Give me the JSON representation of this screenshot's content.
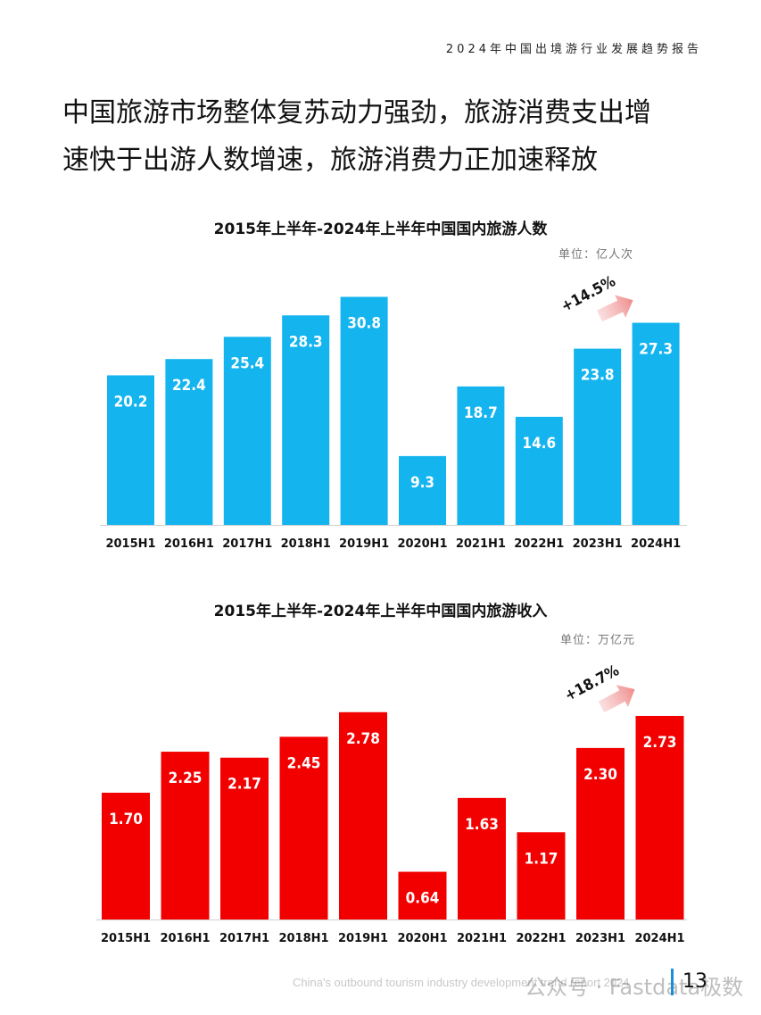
{
  "header": {
    "report_title": "2024年中国出境游行业发展趋势报告"
  },
  "headline": {
    "line1": "中国旅游市场整体复苏动力强劲，旅游消费支出增",
    "line2": "速快于出游人数增速，旅游消费力正加速释放"
  },
  "chart_data": [
    {
      "type": "bar",
      "title": "2015年上半年-2024年上半年中国国内旅游人数",
      "unit_label": "单位：亿人次",
      "categories": [
        "2015H1",
        "2016H1",
        "2017H1",
        "2018H1",
        "2019H1",
        "2020H1",
        "2021H1",
        "2022H1",
        "2023H1",
        "2024H1"
      ],
      "values": [
        20.2,
        22.4,
        25.4,
        28.3,
        30.8,
        9.3,
        18.7,
        14.6,
        23.8,
        27.3
      ],
      "value_labels": [
        "20.2",
        "22.4",
        "25.4",
        "28.3",
        "30.8",
        "9.3",
        "18.7",
        "14.6",
        "23.8",
        "27.3"
      ],
      "annotation": "+14.5%",
      "color": "#14b4ef",
      "ylim": [
        0,
        34
      ]
    },
    {
      "type": "bar",
      "title": "2015年上半年-2024年上半年中国国内旅游收入",
      "unit_label": "单位：万亿元",
      "categories": [
        "2015H1",
        "2016H1",
        "2017H1",
        "2018H1",
        "2019H1",
        "2020H1",
        "2021H1",
        "2022H1",
        "2023H1",
        "2024H1"
      ],
      "values": [
        1.7,
        2.25,
        2.17,
        2.45,
        2.78,
        0.64,
        1.63,
        1.17,
        2.3,
        2.73
      ],
      "value_labels": [
        "1.70",
        "2.25",
        "2.17",
        "2.45",
        "2.78",
        "0.64",
        "1.63",
        "1.17",
        "2.30",
        "2.73"
      ],
      "annotation": "+18.7%",
      "color": "#f20000",
      "ylim": [
        0,
        3.4
      ]
    }
  ],
  "footer": {
    "english_text": "China's outbound tourism industry development trend report 2024",
    "page_number": "13",
    "watermark": "公众号 · Fastdata极数"
  }
}
